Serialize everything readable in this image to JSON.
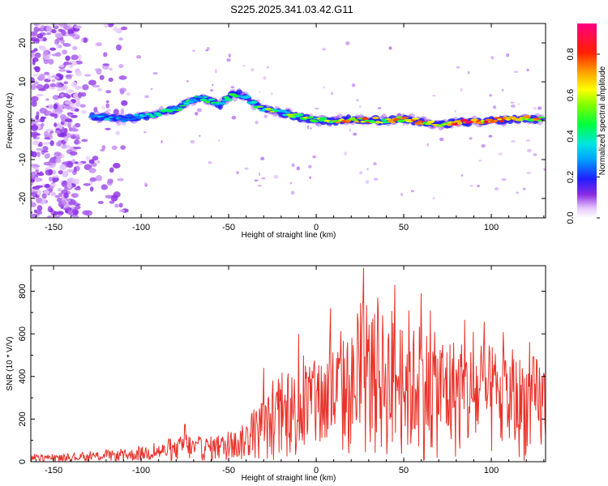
{
  "title": "S225.2025.341.03.42.G11",
  "chart_data": [
    {
      "type": "heatmap",
      "xlabel": "Height of straight line (km)",
      "ylabel": "Frequency (Hz)",
      "xlim": [
        -163,
        131
      ],
      "ylim": [
        -25,
        25
      ],
      "xticks": [
        -150,
        -100,
        -50,
        0,
        50,
        100
      ],
      "yticks": [
        -20,
        -10,
        0,
        10,
        20
      ],
      "colorbar": {
        "label": "Normalized spectral amplitude",
        "range": [
          0,
          0.95
        ],
        "ticks": [
          0.0,
          0.2,
          0.4,
          0.6,
          0.8
        ],
        "colormap": "rainbow"
      },
      "ridge": {
        "x": [
          -128,
          -120,
          -110,
          -100,
          -90,
          -80,
          -72,
          -66,
          -60,
          -55,
          -50,
          -45,
          -40,
          -35,
          -30,
          -25,
          -20,
          -10,
          0,
          10,
          20,
          30,
          40,
          50,
          60,
          70,
          80,
          90,
          100,
          110,
          120,
          130
        ],
        "freq": [
          1,
          1,
          0.5,
          1,
          2,
          3,
          5,
          6,
          5,
          4,
          6,
          7,
          6,
          4,
          3,
          2.5,
          2,
          1,
          0,
          0,
          0.3,
          0.2,
          0,
          0.5,
          -0.3,
          -1,
          -0.5,
          -0.2,
          0,
          0.3,
          0.5,
          0.5
        ],
        "amplitude": [
          0.3,
          0.35,
          0.35,
          0.4,
          0.45,
          0.5,
          0.5,
          0.45,
          0.55,
          0.45,
          0.5,
          0.55,
          0.5,
          0.55,
          0.6,
          0.6,
          0.55,
          0.65,
          0.7,
          0.75,
          0.8,
          0.8,
          0.75,
          0.85,
          0.9,
          0.85,
          0.9,
          0.95,
          0.9,
          0.85,
          0.8,
          0.8
        ]
      },
      "noise_region_km": [
        -163,
        -108
      ]
    },
    {
      "type": "line",
      "xlabel": "Height of straight line (km)",
      "ylabel": "SNR (10 * V/V)",
      "xlim": [
        -163,
        131
      ],
      "ylim": [
        0,
        920
      ],
      "xticks": [
        -150,
        -100,
        -50,
        0,
        50,
        100
      ],
      "yticks": [
        0,
        200,
        400,
        600,
        800
      ],
      "series": [
        {
          "name": "SNR",
          "color": "#e8332a",
          "envelope_x": [
            -163,
            -150,
            -140,
            -130,
            -120,
            -110,
            -100,
            -90,
            -80,
            -75,
            -70,
            -60,
            -50,
            -45,
            -40,
            -35,
            -30,
            -25,
            -20,
            -15,
            -10,
            -5,
            0,
            5,
            10,
            15,
            20,
            25,
            30,
            35,
            40,
            45,
            50,
            55,
            60,
            65,
            70,
            75,
            80,
            85,
            90,
            95,
            100,
            105,
            110,
            115,
            120,
            125,
            131
          ],
          "envelope_y": [
            30,
            30,
            35,
            40,
            55,
            50,
            70,
            85,
            95,
            150,
            110,
            120,
            130,
            150,
            190,
            240,
            300,
            330,
            360,
            400,
            440,
            460,
            480,
            520,
            560,
            580,
            600,
            650,
            700,
            720,
            700,
            680,
            660,
            640,
            640,
            620,
            600,
            600,
            580,
            560,
            560,
            560,
            540,
            520,
            520,
            500,
            500,
            500,
            480
          ],
          "peak_x": [
            -75,
            -30,
            -10,
            8,
            18,
            27,
            35,
            45,
            53,
            60
          ],
          "peak_y": [
            175,
            440,
            600,
            720,
            560,
            910,
            770,
            830,
            710,
            790
          ]
        }
      ]
    }
  ]
}
